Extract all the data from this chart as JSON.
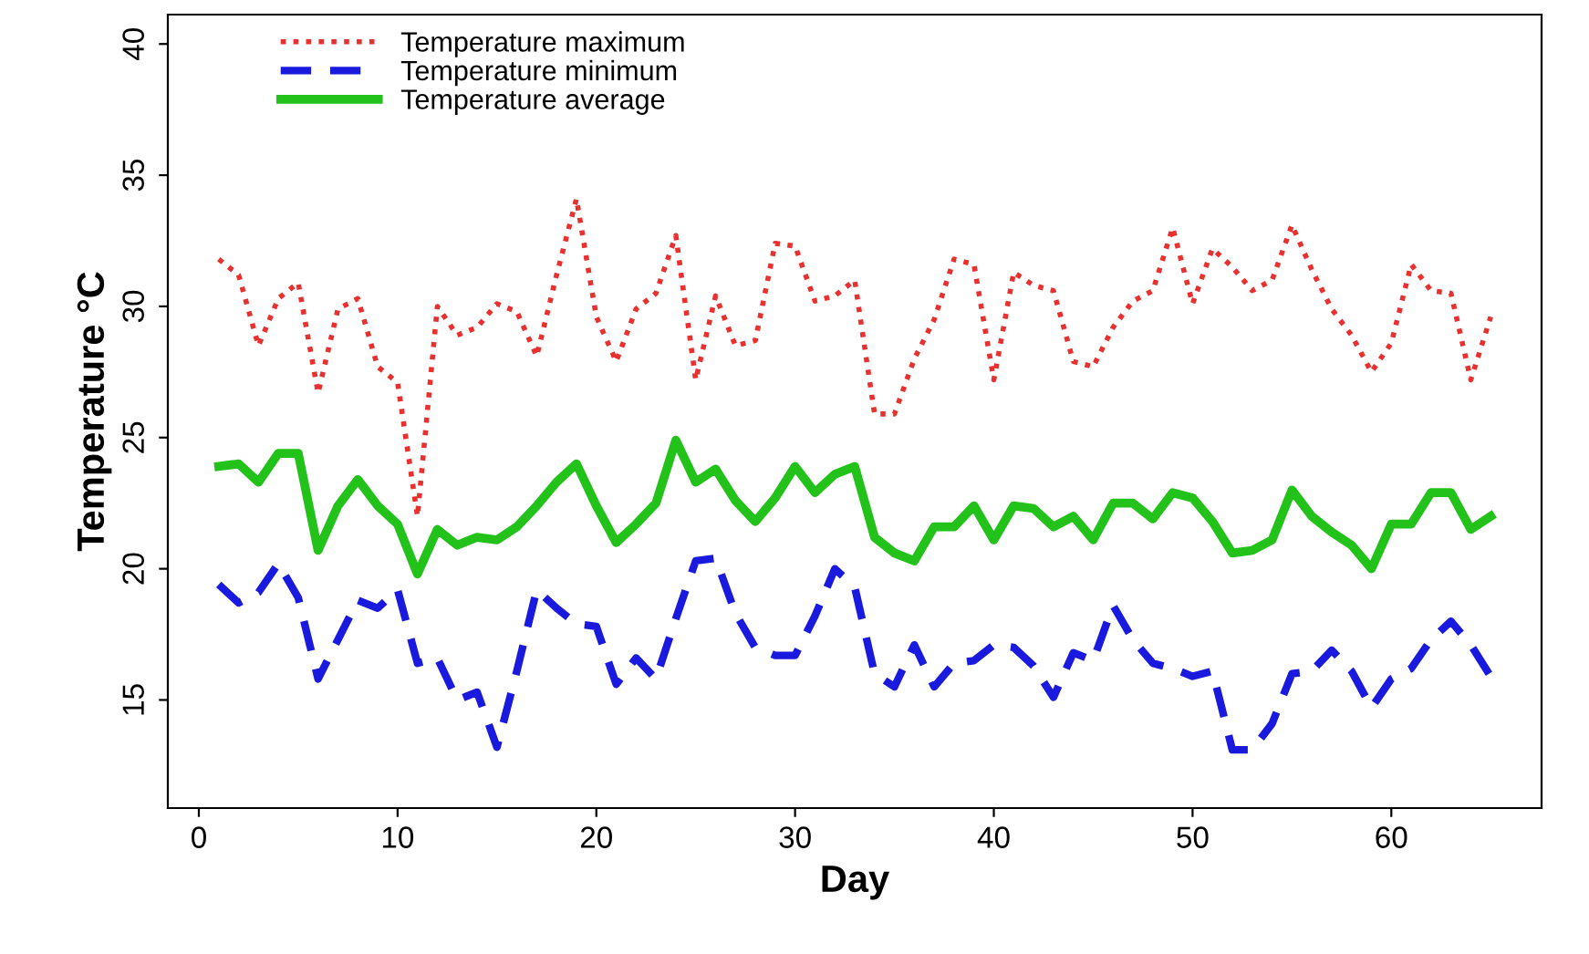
{
  "chart_data": {
    "type": "line",
    "xlabel": "Day",
    "ylabel": "Temperature °C",
    "x": [
      1,
      2,
      3,
      4,
      5,
      6,
      7,
      8,
      9,
      10,
      11,
      12,
      13,
      14,
      15,
      16,
      17,
      18,
      19,
      20,
      21,
      22,
      23,
      24,
      25,
      26,
      27,
      28,
      29,
      30,
      31,
      32,
      33,
      34,
      35,
      36,
      37,
      38,
      39,
      40,
      41,
      42,
      43,
      44,
      45,
      46,
      47,
      48,
      49,
      50,
      51,
      52,
      53,
      54,
      55,
      56,
      57,
      58,
      59,
      60,
      61,
      62,
      63,
      64,
      65
    ],
    "series": [
      {
        "name": "Temperature maximum",
        "color": "#e8302f",
        "line_style": "dotted",
        "values": [
          31.8,
          31.2,
          28.5,
          30.3,
          30.9,
          26.7,
          29.9,
          30.3,
          27.7,
          27.1,
          22.0,
          30.0,
          28.9,
          29.2,
          30.1,
          29.8,
          28.1,
          31.2,
          34.1,
          29.6,
          27.9,
          29.9,
          30.5,
          32.7,
          27.2,
          30.4,
          28.5,
          28.7,
          32.4,
          32.3,
          30.2,
          30.4,
          31.0,
          25.9,
          25.9,
          28.0,
          29.5,
          31.8,
          31.6,
          27.2,
          31.3,
          30.8,
          30.6,
          27.9,
          27.7,
          29.2,
          30.2,
          30.6,
          33.0,
          30.1,
          32.2,
          31.5,
          30.6,
          31.0,
          33.1,
          31.4,
          29.9,
          28.9,
          27.5,
          28.6,
          31.6,
          30.6,
          30.5,
          27.2,
          29.6
        ]
      },
      {
        "name": "Temperature minimum",
        "color": "#1a1adf",
        "line_style": "dashed",
        "values": [
          19.4,
          18.7,
          19.1,
          20.2,
          18.9,
          15.8,
          17.3,
          18.8,
          18.5,
          19.2,
          16.4,
          16.6,
          15.0,
          15.3,
          13.2,
          16.1,
          19.2,
          18.5,
          17.9,
          17.8,
          15.6,
          16.6,
          15.8,
          18.1,
          20.3,
          20.4,
          18.3,
          17.0,
          16.7,
          16.7,
          18.2,
          20.0,
          19.3,
          16.0,
          15.5,
          17.1,
          15.5,
          16.4,
          16.5,
          17.1,
          17.0,
          16.3,
          15.1,
          16.8,
          16.5,
          18.6,
          17.3,
          16.4,
          16.2,
          15.9,
          16.1,
          13.1,
          13.1,
          14.1,
          16.0,
          16.1,
          16.9,
          16.1,
          14.7,
          15.8,
          16.2,
          17.3,
          18.0,
          17.1,
          15.9
        ]
      },
      {
        "name": "Temperature average",
        "color": "#22c21a",
        "line_style": "solid",
        "values": [
          23.9,
          24.0,
          23.3,
          24.4,
          24.4,
          20.7,
          22.4,
          23.4,
          22.4,
          21.7,
          19.8,
          21.5,
          20.9,
          21.2,
          21.1,
          21.6,
          22.4,
          23.3,
          24.0,
          22.4,
          21.0,
          21.7,
          22.5,
          24.9,
          23.3,
          23.8,
          22.6,
          21.8,
          22.7,
          23.9,
          22.9,
          23.6,
          23.9,
          21.2,
          20.6,
          20.3,
          21.6,
          21.6,
          22.4,
          21.1,
          22.4,
          22.3,
          21.6,
          22.0,
          21.1,
          22.5,
          22.5,
          21.9,
          22.9,
          22.7,
          21.8,
          20.6,
          20.7,
          21.1,
          23.0,
          22.0,
          21.4,
          20.9,
          20.0,
          21.7,
          21.7,
          22.9,
          22.9,
          21.5,
          22.0
        ]
      }
    ],
    "xlim": [
      -1.56,
      67.56
    ],
    "xticks": [
      0,
      10,
      20,
      30,
      40,
      50,
      60
    ],
    "ylim": [
      10.88,
      41.12
    ],
    "yticks": [
      15,
      20,
      25,
      30,
      35,
      40
    ],
    "grid": false,
    "legend": "top left"
  }
}
